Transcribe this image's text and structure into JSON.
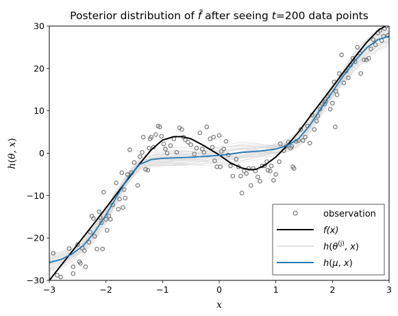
{
  "chart_data": {
    "type": "line",
    "title": "Posterior distribution of f̃ after seeing t=200 data points",
    "xlabel": "x",
    "ylabel": "h(θ, x)",
    "xlim": [
      -3,
      3
    ],
    "ylim": [
      -30,
      30
    ],
    "x_ticks": [
      -3,
      -2,
      -1,
      0,
      1,
      2,
      3
    ],
    "y_ticks": [
      -30,
      -20,
      -10,
      0,
      10,
      20,
      30
    ],
    "x_tick_labels": [
      "−3",
      "−2",
      "−1",
      "0",
      "1",
      "2",
      "3"
    ],
    "y_tick_labels": [
      "−30",
      "−20",
      "−10",
      "0",
      "10",
      "20",
      "30"
    ],
    "grid": false,
    "legend_position": "lower-right",
    "colors": {
      "observation": "#777777",
      "true_function": "#000000",
      "samples": "#d9d9d9",
      "mean": "#1f77b4"
    },
    "legend": [
      {
        "label": "observation",
        "marker": "open-circle"
      },
      {
        "label": "f(x)",
        "marker": "line-black"
      },
      {
        "label": "h(θ(j), x)",
        "marker": "line-light"
      },
      {
        "label": "h(μ, x)",
        "marker": "line-blue"
      }
    ],
    "observations": [
      {
        "x": -2.93,
        "y": -23.6
      },
      {
        "x": -2.86,
        "y": -28.8
      },
      {
        "x": -2.8,
        "y": -29.2
      },
      {
        "x": -2.65,
        "y": -22.5
      },
      {
        "x": -2.58,
        "y": -26.8
      },
      {
        "x": -2.58,
        "y": -28.4
      },
      {
        "x": -2.5,
        "y": -21.6
      },
      {
        "x": -2.47,
        "y": -25.6
      },
      {
        "x": -2.45,
        "y": -26.0
      },
      {
        "x": -2.42,
        "y": -22.4
      },
      {
        "x": -2.38,
        "y": -23.0
      },
      {
        "x": -2.36,
        "y": -26.8
      },
      {
        "x": -2.3,
        "y": -21.0
      },
      {
        "x": -2.28,
        "y": -18.6
      },
      {
        "x": -2.25,
        "y": -14.8
      },
      {
        "x": -2.22,
        "y": -15.4
      },
      {
        "x": -2.2,
        "y": -19.6
      },
      {
        "x": -2.16,
        "y": -22.6
      },
      {
        "x": -2.12,
        "y": -13.8
      },
      {
        "x": -2.1,
        "y": -15.2
      },
      {
        "x": -2.08,
        "y": -16.4
      },
      {
        "x": -2.06,
        "y": -22.6
      },
      {
        "x": -2.04,
        "y": -9.2
      },
      {
        "x": -2.0,
        "y": -15.6
      },
      {
        "x": -1.98,
        "y": -18.2
      },
      {
        "x": -1.95,
        "y": -14.8
      },
      {
        "x": -1.92,
        "y": -15.6
      },
      {
        "x": -1.88,
        "y": -12.2
      },
      {
        "x": -1.82,
        "y": -7.0
      },
      {
        "x": -1.78,
        "y": -13.2
      },
      {
        "x": -1.76,
        "y": -10.8
      },
      {
        "x": -1.72,
        "y": -4.6
      },
      {
        "x": -1.7,
        "y": -12.8
      },
      {
        "x": -1.68,
        "y": -8.6
      },
      {
        "x": -1.66,
        "y": -10.6
      },
      {
        "x": -1.62,
        "y": -5.0
      },
      {
        "x": -1.58,
        "y": 0.8
      },
      {
        "x": -1.55,
        "y": -4.6
      },
      {
        "x": -1.5,
        "y": -2.2
      },
      {
        "x": -1.44,
        "y": -7.6
      },
      {
        "x": -1.4,
        "y": -0.8
      },
      {
        "x": -1.36,
        "y": 0.2
      },
      {
        "x": -1.34,
        "y": 3.8
      },
      {
        "x": -1.3,
        "y": -3.8
      },
      {
        "x": -1.26,
        "y": -4.0
      },
      {
        "x": -1.24,
        "y": 1.2
      },
      {
        "x": -1.22,
        "y": 3.4
      },
      {
        "x": -1.2,
        "y": 3.8
      },
      {
        "x": -1.16,
        "y": 1.4
      },
      {
        "x": -1.12,
        "y": 4.4
      },
      {
        "x": -1.08,
        "y": 6.4
      },
      {
        "x": -1.05,
        "y": 6.2
      },
      {
        "x": -1.02,
        "y": 4.0
      },
      {
        "x": -0.98,
        "y": 2.2
      },
      {
        "x": -0.95,
        "y": 1.0
      },
      {
        "x": -0.92,
        "y": 0.0
      },
      {
        "x": -0.86,
        "y": 1.8
      },
      {
        "x": -0.8,
        "y": 3.4
      },
      {
        "x": -0.75,
        "y": 0.2
      },
      {
        "x": -0.7,
        "y": 6.0
      },
      {
        "x": -0.66,
        "y": 5.6
      },
      {
        "x": -0.63,
        "y": 3.8
      },
      {
        "x": -0.6,
        "y": 3.2
      },
      {
        "x": -0.55,
        "y": 2.6
      },
      {
        "x": -0.5,
        "y": 2.0
      },
      {
        "x": -0.44,
        "y": -0.2
      },
      {
        "x": -0.4,
        "y": 1.2
      },
      {
        "x": -0.34,
        "y": 4.8
      },
      {
        "x": -0.3,
        "y": 1.0
      },
      {
        "x": -0.27,
        "y": 0.2
      },
      {
        "x": -0.22,
        "y": 6.2
      },
      {
        "x": -0.16,
        "y": 3.4
      },
      {
        "x": -0.12,
        "y": 1.4
      },
      {
        "x": -0.1,
        "y": 3.8
      },
      {
        "x": -0.08,
        "y": -1.8
      },
      {
        "x": -0.04,
        "y": -3.2
      },
      {
        "x": 0.0,
        "y": 4.2
      },
      {
        "x": 0.04,
        "y": 0.4
      },
      {
        "x": 0.02,
        "y": -3.2
      },
      {
        "x": 0.08,
        "y": 1.0
      },
      {
        "x": 0.12,
        "y": 2.8
      },
      {
        "x": 0.16,
        "y": -0.4
      },
      {
        "x": 0.2,
        "y": -3.0
      },
      {
        "x": 0.24,
        "y": -5.4
      },
      {
        "x": 0.3,
        "y": -1.4
      },
      {
        "x": 0.34,
        "y": -3.2
      },
      {
        "x": 0.38,
        "y": -5.4
      },
      {
        "x": 0.4,
        "y": -9.4
      },
      {
        "x": 0.44,
        "y": -4.2
      },
      {
        "x": 0.48,
        "y": -4.8
      },
      {
        "x": 0.52,
        "y": -3.6
      },
      {
        "x": 0.56,
        "y": -7.6
      },
      {
        "x": 0.6,
        "y": -3.6
      },
      {
        "x": 0.64,
        "y": -4.2
      },
      {
        "x": 0.68,
        "y": -5.6
      },
      {
        "x": 0.72,
        "y": -6.6
      },
      {
        "x": 0.76,
        "y": -3.0
      },
      {
        "x": 0.8,
        "y": -3.0
      },
      {
        "x": 0.84,
        "y": -2.0
      },
      {
        "x": 0.86,
        "y": -4.0
      },
      {
        "x": 0.9,
        "y": -4.2
      },
      {
        "x": 0.92,
        "y": -3.0
      },
      {
        "x": 0.96,
        "y": -6.4
      },
      {
        "x": 1.0,
        "y": -5.0
      },
      {
        "x": 1.06,
        "y": -2.0
      },
      {
        "x": 1.08,
        "y": 2.2
      },
      {
        "x": 1.14,
        "y": 0.6
      },
      {
        "x": 1.18,
        "y": 1.6
      },
      {
        "x": 1.22,
        "y": 2.6
      },
      {
        "x": 1.26,
        "y": 1.2
      },
      {
        "x": 1.28,
        "y": 1.6
      },
      {
        "x": 1.3,
        "y": -3.2
      },
      {
        "x": 1.32,
        "y": -3.6
      },
      {
        "x": 1.36,
        "y": 2.8
      },
      {
        "x": 1.4,
        "y": 3.0
      },
      {
        "x": 1.44,
        "y": 5.6
      },
      {
        "x": 1.48,
        "y": 3.0
      },
      {
        "x": 1.52,
        "y": 3.8
      },
      {
        "x": 1.56,
        "y": 6.4
      },
      {
        "x": 1.6,
        "y": 2.4
      },
      {
        "x": 1.64,
        "y": 9.0
      },
      {
        "x": 1.68,
        "y": 5.6
      },
      {
        "x": 1.72,
        "y": 7.6
      },
      {
        "x": 1.74,
        "y": 8.8
      },
      {
        "x": 1.78,
        "y": 10.4
      },
      {
        "x": 1.82,
        "y": 11.6
      },
      {
        "x": 1.86,
        "y": 11.6
      },
      {
        "x": 1.88,
        "y": 12.2
      },
      {
        "x": 1.92,
        "y": 13.4
      },
      {
        "x": 1.96,
        "y": 10.4
      },
      {
        "x": 2.0,
        "y": 11.8
      },
      {
        "x": 2.03,
        "y": 16.8
      },
      {
        "x": 2.05,
        "y": 6.2
      },
      {
        "x": 2.06,
        "y": 14.6
      },
      {
        "x": 2.08,
        "y": 13.8
      },
      {
        "x": 2.12,
        "y": 18.8
      },
      {
        "x": 2.16,
        "y": 23.2
      },
      {
        "x": 2.2,
        "y": 16.6
      },
      {
        "x": 2.24,
        "y": 19.4
      },
      {
        "x": 2.28,
        "y": 17.8
      },
      {
        "x": 2.32,
        "y": 20.8
      },
      {
        "x": 2.36,
        "y": 22.4
      },
      {
        "x": 2.4,
        "y": 21.6
      },
      {
        "x": 2.44,
        "y": 25.0
      },
      {
        "x": 2.48,
        "y": 23.6
      },
      {
        "x": 2.5,
        "y": 18.8
      },
      {
        "x": 2.56,
        "y": 22.0
      },
      {
        "x": 2.6,
        "y": 22.0
      },
      {
        "x": 2.64,
        "y": 22.4
      },
      {
        "x": 2.68,
        "y": 24.6
      },
      {
        "x": 2.72,
        "y": 26.8
      },
      {
        "x": 2.76,
        "y": 25.6
      },
      {
        "x": 2.8,
        "y": 28.4
      },
      {
        "x": 2.84,
        "y": 29.0
      },
      {
        "x": 2.87,
        "y": 26.6
      },
      {
        "x": 2.9,
        "y": 27.6
      },
      {
        "x": 2.92,
        "y": 29.4
      },
      {
        "x": 2.95,
        "y": 30.0
      },
      {
        "x": 2.98,
        "y": 27.8
      }
    ],
    "series": [
      {
        "name": "f(x)",
        "x": [
          -3.0,
          -2.8,
          -2.6,
          -2.4,
          -2.2,
          -2.0,
          -1.8,
          -1.6,
          -1.4,
          -1.2,
          -1.0,
          -0.8,
          -0.65,
          -0.5,
          -0.3,
          -0.1,
          0.0,
          0.2,
          0.4,
          0.55,
          0.65,
          0.8,
          1.0,
          1.2,
          1.4,
          1.6,
          1.8,
          2.0,
          2.2,
          2.4,
          2.6,
          2.8,
          3.0
        ],
        "y": [
          -30.0,
          -26.6,
          -23.2,
          -19.8,
          -16.4,
          -12.9,
          -9.4,
          -5.9,
          -2.4,
          0.8,
          3.1,
          3.9,
          3.9,
          3.4,
          2.0,
          0.4,
          -0.4,
          -2.3,
          -3.5,
          -3.9,
          -3.8,
          -2.9,
          -0.9,
          1.8,
          5.0,
          8.6,
          12.1,
          15.6,
          19.2,
          22.7,
          26.1,
          28.9,
          30.6
        ]
      },
      {
        "name": "h(μ, x)",
        "x": [
          -3.0,
          -2.8,
          -2.6,
          -2.4,
          -2.2,
          -2.0,
          -1.8,
          -1.6,
          -1.4,
          -1.2,
          -1.0,
          -0.8,
          -0.6,
          -0.4,
          -0.2,
          0.0,
          0.2,
          0.4,
          0.6,
          0.8,
          1.0,
          1.2,
          1.4,
          1.6,
          1.8,
          2.0,
          2.2,
          2.4,
          2.6,
          2.8,
          3.0
        ],
        "y": [
          -25.8,
          -25.1,
          -23.8,
          -21.8,
          -18.6,
          -14.6,
          -10.0,
          -5.6,
          -2.6,
          -1.5,
          -1.2,
          -1.1,
          -1.0,
          -0.9,
          -0.7,
          -0.5,
          -0.2,
          0.2,
          0.4,
          0.6,
          1.0,
          1.8,
          3.4,
          6.6,
          10.6,
          14.5,
          18.4,
          21.8,
          24.8,
          26.8,
          27.6
        ]
      }
    ]
  }
}
